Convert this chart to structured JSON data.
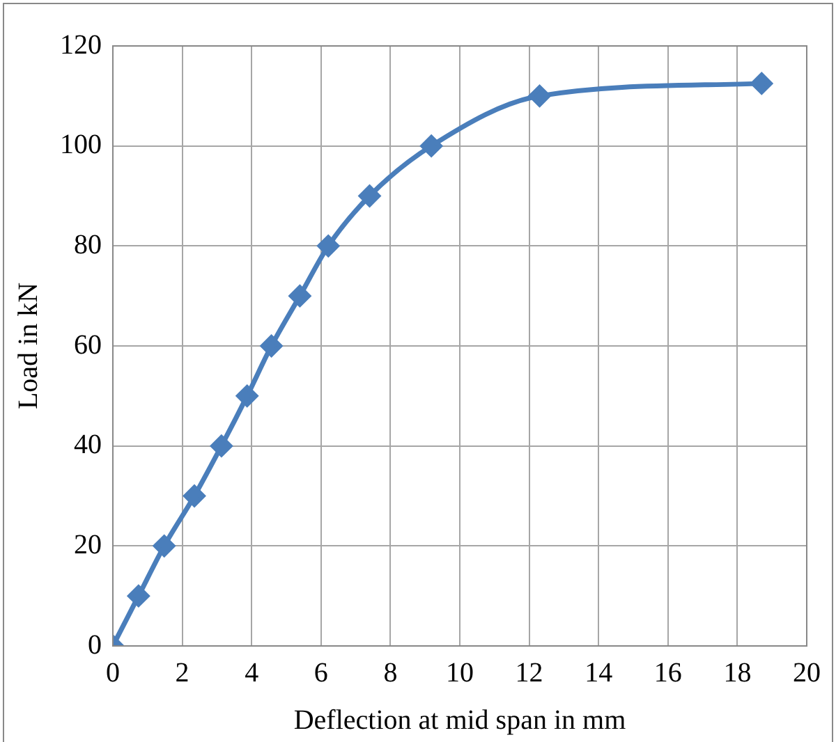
{
  "chart_data": {
    "type": "line",
    "xlabel": "Deflection at mid span in mm",
    "ylabel": "Load in kN",
    "x": [
      0,
      0.74,
      1.48,
      2.35,
      3.13,
      3.87,
      4.57,
      5.39,
      6.21,
      7.4,
      9.18,
      12.3,
      18.7
    ],
    "series": [
      {
        "color": "#4a7ebb",
        "values": [
          0,
          10,
          20,
          30,
          40,
          50,
          60,
          70,
          80,
          90,
          100,
          110,
          112.5
        ]
      }
    ],
    "xlim": [
      0,
      20
    ],
    "xticks": [
      0,
      2,
      4,
      6,
      8,
      10,
      12,
      14,
      16,
      18,
      20
    ],
    "ylim": [
      0,
      120
    ],
    "yticks": [
      0,
      20,
      40,
      60,
      80,
      100,
      120
    ],
    "grid": true,
    "marker": "diamond",
    "line_style": "solid"
  }
}
